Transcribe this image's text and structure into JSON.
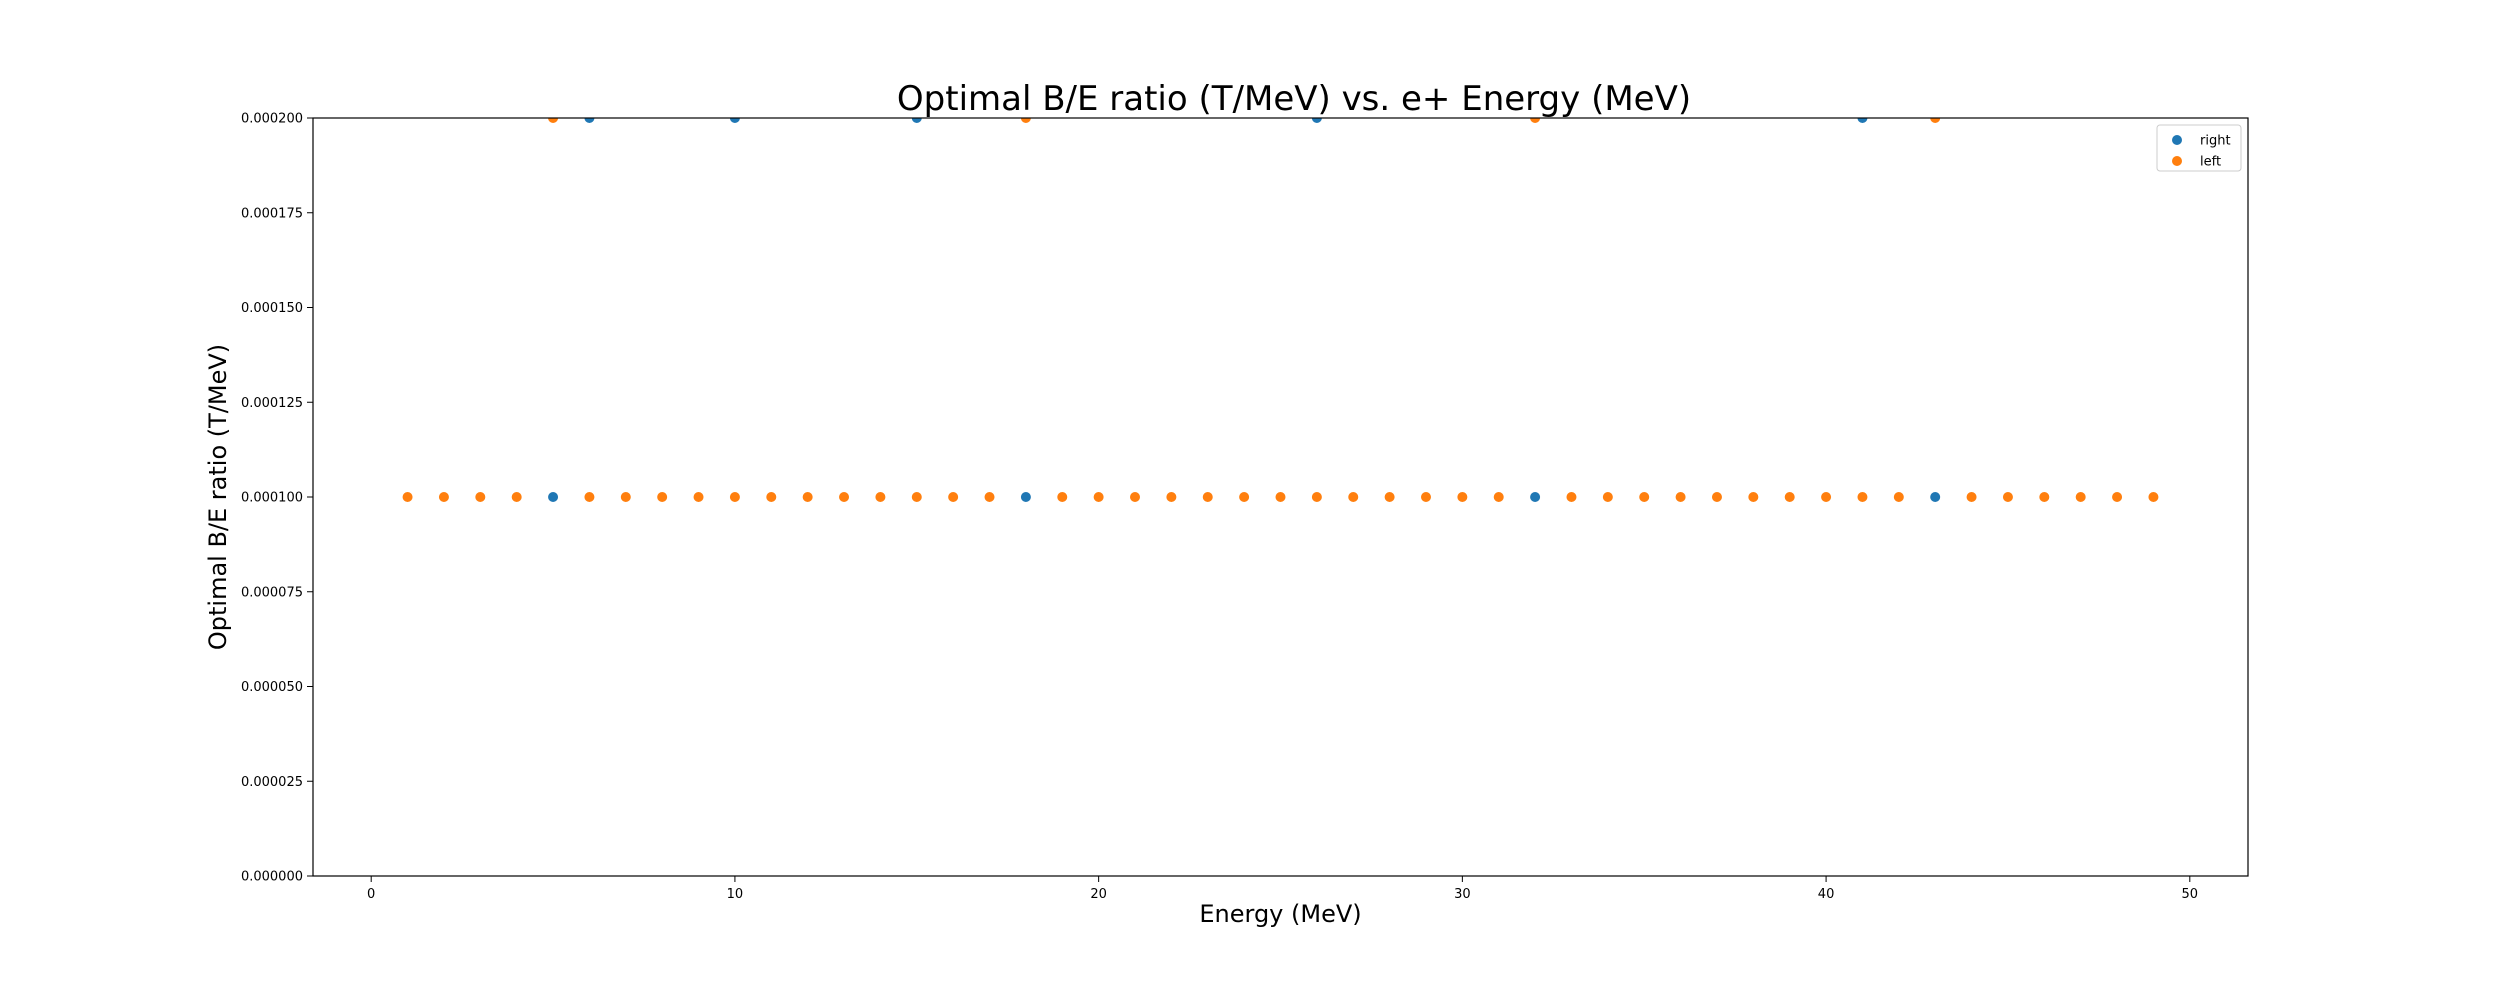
{
  "chart_data": {
    "type": "scatter",
    "title": "Optimal B/E ratio (T/MeV) vs. e+ Energy (MeV)",
    "xlabel": "Energy (MeV)",
    "ylabel": "Optimal B/E ratio (T/MeV)",
    "xlim": [
      -1.6,
      51.6
    ],
    "ylim": [
      0,
      0.0002
    ],
    "x_ticks": [
      0,
      10,
      20,
      30,
      40,
      50
    ],
    "x_tick_labels": [
      "0",
      "10",
      "20",
      "30",
      "40",
      "50"
    ],
    "y_ticks": [
      0,
      2.5e-05,
      5e-05,
      7.5e-05,
      0.0001,
      0.000125,
      0.00015,
      0.000175,
      0.0002
    ],
    "y_tick_labels": [
      "0.000000",
      "0.000025",
      "0.000050",
      "0.000075",
      "0.000100",
      "0.000125",
      "0.000150",
      "0.000175",
      "0.000200"
    ],
    "grid": false,
    "legend_position": "top-right",
    "series": [
      {
        "name": "right",
        "color": "#1f77b4",
        "points": [
          {
            "x": 5,
            "y": 0.0001
          },
          {
            "x": 6,
            "y": 0.0002
          },
          {
            "x": 10,
            "y": 0.0002
          },
          {
            "x": 15,
            "y": 0.0002
          },
          {
            "x": 18,
            "y": 0.0001
          },
          {
            "x": 26,
            "y": 0.0002
          },
          {
            "x": 32,
            "y": 0.0001
          },
          {
            "x": 41,
            "y": 0.0002
          },
          {
            "x": 43,
            "y": 0.0001
          }
        ]
      },
      {
        "name": "left",
        "color": "#ff7f0e",
        "points": [
          {
            "x": 1,
            "y": 0.0001
          },
          {
            "x": 2,
            "y": 0.0001
          },
          {
            "x": 3,
            "y": 0.0001
          },
          {
            "x": 4,
            "y": 0.0001
          },
          {
            "x": 5,
            "y": 0.0002
          },
          {
            "x": 6,
            "y": 0.0001
          },
          {
            "x": 7,
            "y": 0.0001
          },
          {
            "x": 8,
            "y": 0.0001
          },
          {
            "x": 9,
            "y": 0.0001
          },
          {
            "x": 10,
            "y": 0.0001
          },
          {
            "x": 11,
            "y": 0.0001
          },
          {
            "x": 12,
            "y": 0.0001
          },
          {
            "x": 13,
            "y": 0.0001
          },
          {
            "x": 14,
            "y": 0.0001
          },
          {
            "x": 15,
            "y": 0.0001
          },
          {
            "x": 16,
            "y": 0.0001
          },
          {
            "x": 17,
            "y": 0.0001
          },
          {
            "x": 18,
            "y": 0.0002
          },
          {
            "x": 19,
            "y": 0.0001
          },
          {
            "x": 20,
            "y": 0.0001
          },
          {
            "x": 21,
            "y": 0.0001
          },
          {
            "x": 22,
            "y": 0.0001
          },
          {
            "x": 23,
            "y": 0.0001
          },
          {
            "x": 24,
            "y": 0.0001
          },
          {
            "x": 25,
            "y": 0.0001
          },
          {
            "x": 26,
            "y": 0.0001
          },
          {
            "x": 27,
            "y": 0.0001
          },
          {
            "x": 28,
            "y": 0.0001
          },
          {
            "x": 29,
            "y": 0.0001
          },
          {
            "x": 30,
            "y": 0.0001
          },
          {
            "x": 31,
            "y": 0.0001
          },
          {
            "x": 32,
            "y": 0.0002
          },
          {
            "x": 33,
            "y": 0.0001
          },
          {
            "x": 34,
            "y": 0.0001
          },
          {
            "x": 35,
            "y": 0.0001
          },
          {
            "x": 36,
            "y": 0.0001
          },
          {
            "x": 37,
            "y": 0.0001
          },
          {
            "x": 38,
            "y": 0.0001
          },
          {
            "x": 39,
            "y": 0.0001
          },
          {
            "x": 40,
            "y": 0.0001
          },
          {
            "x": 41,
            "y": 0.0001
          },
          {
            "x": 42,
            "y": 0.0001
          },
          {
            "x": 43,
            "y": 0.0002
          },
          {
            "x": 44,
            "y": 0.0001
          },
          {
            "x": 45,
            "y": 0.0001
          },
          {
            "x": 46,
            "y": 0.0001
          },
          {
            "x": 47,
            "y": 0.0001
          },
          {
            "x": 48,
            "y": 0.0001
          },
          {
            "x": 49,
            "y": 0.0001
          }
        ]
      }
    ]
  }
}
